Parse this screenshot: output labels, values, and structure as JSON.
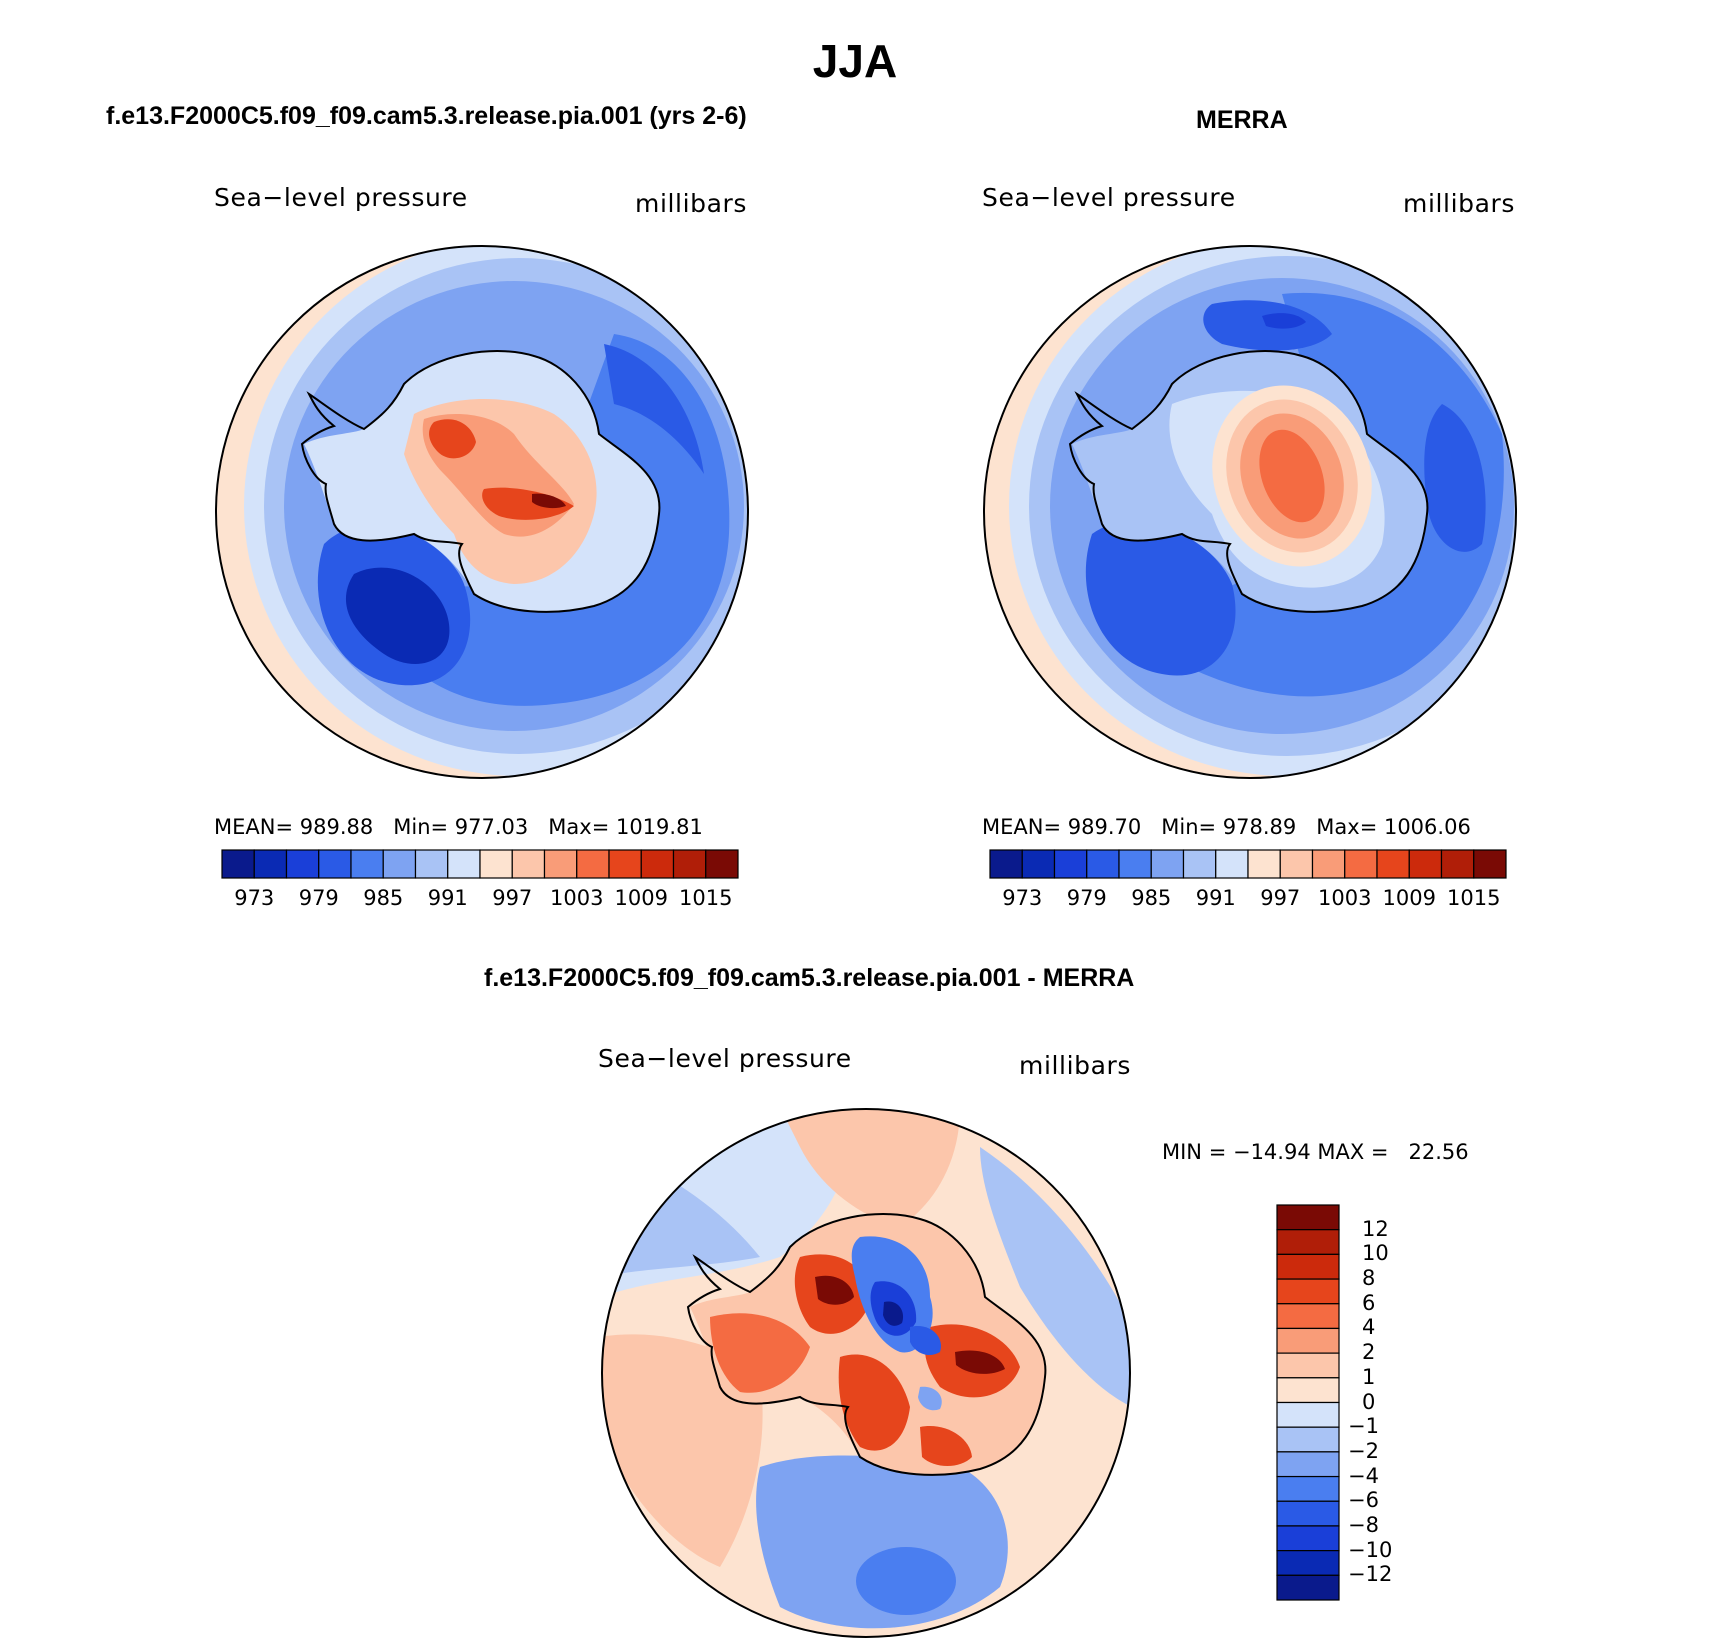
{
  "title": "JJA",
  "panels": [
    {
      "heading": "f.e13.F2000C5.f09_f09.cam5.3.release.pia.001 (yrs 2-6)",
      "variable": "Sea−level pressure",
      "units": "millibars",
      "stats": "MEAN= 989.88   Min= 977.03   Max= 1019.81",
      "mean": 989.88,
      "min": 977.03,
      "max": 1019.81
    },
    {
      "heading": "MERRA",
      "variable": "Sea−level pressure",
      "units": "millibars",
      "stats": "MEAN= 989.70   Min= 978.89   Max= 1006.06",
      "mean": 989.7,
      "min": 978.89,
      "max": 1006.06
    },
    {
      "heading": "f.e13.F2000C5.f09_f09.cam5.3.release.pia.001 - MERRA",
      "variable": "Sea−level pressure",
      "units": "millibars",
      "stats": "MIN = −14.94 MAX =   22.56",
      "min": -14.94,
      "max": 22.56
    }
  ],
  "colorbar_field": {
    "colors": [
      "#0a1a8c",
      "#0a2ab4",
      "#1a3fd8",
      "#2a5ae6",
      "#4a7ef0",
      "#7ea3f2",
      "#a9c3f5",
      "#d4e3fa",
      "#fde3d0",
      "#fcc6ab",
      "#f99c78",
      "#f46b42",
      "#e6451c",
      "#cc2a0c",
      "#b01e08",
      "#7a0a05"
    ],
    "labels": [
      "973",
      "979",
      "985",
      "991",
      "997",
      "1003",
      "1009",
      "1015"
    ]
  },
  "colorbar_diff": {
    "colors": [
      "#0a1a8c",
      "#0a2ab4",
      "#1a3fd8",
      "#2a5ae6",
      "#4a7ef0",
      "#7ea3f2",
      "#a9c3f5",
      "#d4e3fa",
      "#fde3d0",
      "#fcc6ab",
      "#f99c78",
      "#f46b42",
      "#e6451c",
      "#cc2a0c",
      "#b01e08",
      "#7a0a05"
    ],
    "labels": [
      "12",
      "10",
      "8",
      "6",
      "4",
      "2",
      "1",
      "0",
      "−1",
      "−2",
      "−4",
      "−6",
      "−8",
      "−10",
      "−12"
    ]
  }
}
